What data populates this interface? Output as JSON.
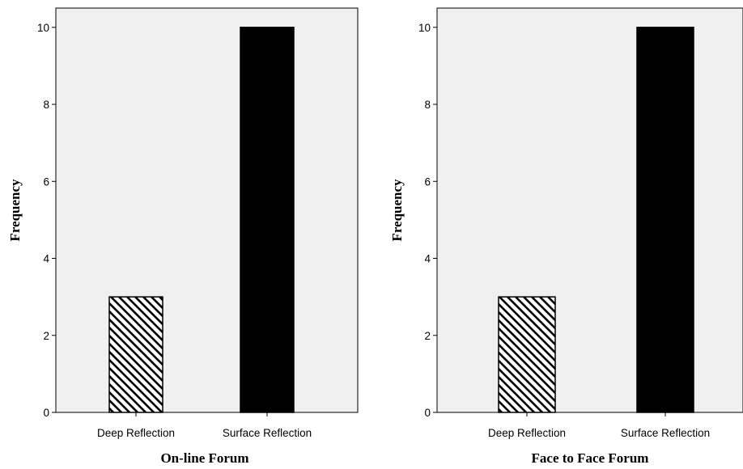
{
  "colors": {
    "plot_background": "#f0f0f0",
    "surface_bar": "#000000",
    "deep_bar_hatch": "#000000",
    "deep_bar_fill": "#ffffff"
  },
  "chart_data": [
    {
      "type": "bar",
      "categories": [
        "Deep Reflection",
        "Surface Reflection"
      ],
      "values": [
        3,
        10
      ],
      "bar_styles": [
        "hatched",
        "solid"
      ],
      "xlabel": "On-line Forum",
      "ylabel": "Frequency",
      "ylim": [
        0,
        10.5
      ],
      "yticks": [
        0,
        2,
        4,
        6,
        8,
        10
      ],
      "grid": false,
      "legend": "none"
    },
    {
      "type": "bar",
      "categories": [
        "Deep Reflection",
        "Surface Reflection"
      ],
      "values": [
        3,
        10
      ],
      "bar_styles": [
        "hatched",
        "solid"
      ],
      "xlabel": "Face to Face Forum",
      "ylabel": "Frequency",
      "ylim": [
        0,
        10.5
      ],
      "yticks": [
        0,
        2,
        4,
        6,
        8,
        10
      ],
      "grid": false,
      "legend": "none"
    }
  ]
}
